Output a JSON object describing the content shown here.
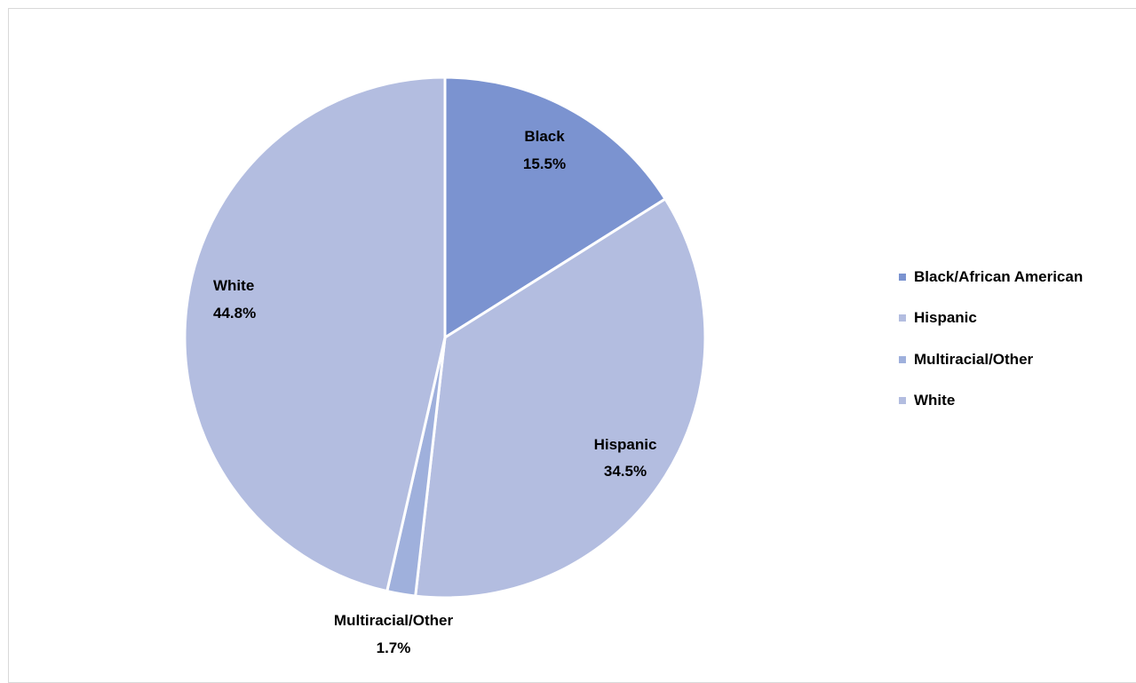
{
  "chart_data": {
    "type": "pie",
    "title": "",
    "categories": [
      "Black/African American",
      "Hispanic",
      "Multiracial/Other",
      "White"
    ],
    "values": [
      15.5,
      34.5,
      1.7,
      44.8
    ],
    "slice_labels": [
      {
        "name": "Black",
        "value_text": "15.5%"
      },
      {
        "name": "Hispanic",
        "value_text": "34.5%"
      },
      {
        "name": "Multiracial/Other",
        "value_text": "1.7%"
      },
      {
        "name": "White",
        "value_text": "44.8%"
      }
    ],
    "colors": [
      "#7b93d0",
      "#b3bde0",
      "#9fb0dc",
      "#b3bde0"
    ],
    "legend_position": "right",
    "legend": [
      {
        "label": "Black/African American",
        "color": "#7b93d0"
      },
      {
        "label": "Hispanic",
        "color": "#b3bde0"
      },
      {
        "label": "Multiracial/Other",
        "color": "#9fb0dc"
      },
      {
        "label": "White",
        "color": "#b3bde0"
      }
    ]
  }
}
